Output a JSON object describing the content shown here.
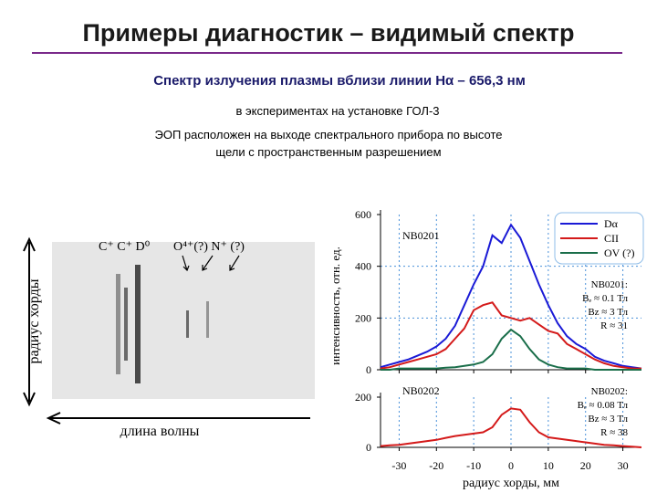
{
  "header": {
    "title": "Примеры диагностик – видимый спектр",
    "subtitle": "Спектр излучения плазмы вблизи линии Hα – 656,3 нм",
    "setup": "в экспериментах на установке ГОЛ-3",
    "description": [
      "ЭОП расположен на выходе спектрального прибора по высоте",
      "щели с пространственным разрешением"
    ]
  },
  "image": {
    "lines_left": "C⁺ C⁺ D⁰",
    "lines_right": "O⁴⁺(?) N⁺ (?)",
    "y_label": "радиус хорды",
    "x_label": "длина волны"
  },
  "chart_data": [
    {
      "type": "line",
      "annotation": "NB0201",
      "notes": [
        "NB0201:",
        "Bₑ ≈ 0.1 Тл",
        "Bz ≈ 3 Тл",
        "R ≈ 31"
      ],
      "y_label": "интенсивность, отн. ед.",
      "x": [
        -35,
        -32.5,
        -30,
        -27.5,
        -25,
        -22.5,
        -20,
        -17.5,
        -15,
        -12.5,
        -10,
        -7.5,
        -5,
        -2.5,
        0,
        2.5,
        5,
        7.5,
        10,
        12.5,
        15,
        17.5,
        20,
        22.5,
        25,
        27.5,
        30,
        32.5,
        35
      ],
      "series": [
        {
          "name": "Dα",
          "color": "#1a1ad6",
          "values": [
            10,
            20,
            30,
            40,
            55,
            70,
            90,
            120,
            170,
            250,
            330,
            400,
            520,
            490,
            560,
            510,
            420,
            330,
            250,
            180,
            130,
            100,
            80,
            50,
            35,
            25,
            15,
            10,
            5
          ]
        },
        {
          "name": "CII",
          "color": "#d41a1a",
          "values": [
            5,
            10,
            20,
            30,
            40,
            50,
            60,
            80,
            120,
            160,
            230,
            250,
            260,
            210,
            200,
            190,
            200,
            175,
            150,
            140,
            100,
            80,
            60,
            40,
            25,
            15,
            10,
            5,
            5
          ]
        },
        {
          "name": "OV (?)",
          "color": "#1a6e4a",
          "values": [
            0,
            0,
            5,
            5,
            5,
            5,
            5,
            8,
            10,
            15,
            20,
            30,
            60,
            120,
            155,
            130,
            80,
            40,
            20,
            10,
            5,
            5,
            5,
            0,
            0,
            0,
            0,
            0,
            0
          ]
        }
      ],
      "xlim": [
        -35,
        35
      ],
      "xticks": [
        -30,
        -20,
        -10,
        0,
        10,
        20,
        30
      ],
      "ylim": [
        0,
        600
      ],
      "yticks": [
        0,
        200,
        400,
        600
      ],
      "grid": true,
      "legend": "upper right"
    },
    {
      "type": "line",
      "annotation": "NB0202",
      "notes": [
        "NB0202:",
        "Bₑ ≈ 0.08 Тл",
        "Bz ≈ 3 Тл",
        "R ≈ 38"
      ],
      "x_label": "радиус хорды, мм",
      "x": [
        -35,
        -32.5,
        -30,
        -27.5,
        -25,
        -22.5,
        -20,
        -17.5,
        -15,
        -12.5,
        -10,
        -7.5,
        -5,
        -2.5,
        0,
        2.5,
        5,
        7.5,
        10,
        12.5,
        15,
        17.5,
        20,
        22.5,
        25,
        27.5,
        30,
        32.5,
        35
      ],
      "series": [
        {
          "name": "CII",
          "color": "#d41a1a",
          "values": [
            5,
            8,
            10,
            15,
            20,
            25,
            30,
            38,
            45,
            50,
            55,
            60,
            80,
            130,
            155,
            150,
            100,
            60,
            40,
            35,
            30,
            25,
            20,
            15,
            10,
            8,
            5,
            3,
            0
          ]
        }
      ],
      "xlim": [
        -35,
        35
      ],
      "xticks": [
        -30,
        -20,
        -10,
        0,
        10,
        20,
        30
      ],
      "ylim": [
        0,
        200
      ],
      "yticks": [
        0,
        200
      ],
      "grid": true
    }
  ]
}
